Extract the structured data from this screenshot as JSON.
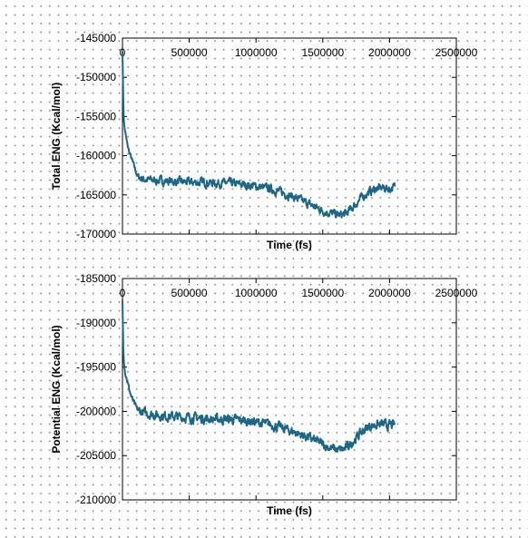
{
  "chart_data": [
    {
      "type": "line",
      "xlabel": "Time (fs)",
      "ylabel": "Total ENG (Kcal/mol)",
      "xlim": [
        0,
        2500000
      ],
      "ylim": [
        -170000,
        -145000
      ],
      "x_ticks": [
        "0",
        "500000",
        "1000000",
        "1500000",
        "2000000",
        "2500000"
      ],
      "y_ticks": [
        "-145000",
        "-150000",
        "-155000",
        "-160000",
        "-165000",
        "-170000"
      ],
      "x_axis_position": "top",
      "grid": false,
      "line_color": "#1b6787",
      "series": [
        {
          "x": [
            0,
            5000,
            10000,
            20000,
            35000,
            50000,
            70000,
            90000,
            110000,
            150000,
            200000,
            300000,
            400000,
            500000,
            600000,
            700000,
            800000,
            900000,
            1000000,
            1100000,
            1200000,
            1300000,
            1400000,
            1500000,
            1550000,
            1600000,
            1630000,
            1670000,
            1700000,
            1750000,
            1800000,
            1850000,
            1900000,
            1950000,
            2000000,
            2040000
          ],
          "y": [
            -146500,
            -152000,
            -155500,
            -157000,
            -158500,
            -159500,
            -160500,
            -161500,
            -162500,
            -163000,
            -163100,
            -163200,
            -163300,
            -163400,
            -163400,
            -163500,
            -163500,
            -163700,
            -163900,
            -164200,
            -164700,
            -165400,
            -166200,
            -167000,
            -167300,
            -167500,
            -167600,
            -167400,
            -167000,
            -166100,
            -165200,
            -164600,
            -164200,
            -164100,
            -164200,
            -164000
          ]
        }
      ]
    },
    {
      "type": "line",
      "xlabel": "Time (fs)",
      "ylabel": "Potential ENG (Kcal/mol)",
      "xlim": [
        0,
        2500000
      ],
      "ylim": [
        -210000,
        -185000
      ],
      "x_ticks": [
        "0",
        "500000",
        "1000000",
        "1500000",
        "2000000",
        "2500000"
      ],
      "y_ticks": [
        "-185000",
        "-190000",
        "-195000",
        "-200000",
        "-205000",
        "-210000"
      ],
      "x_axis_position": "top",
      "grid": false,
      "line_color": "#1b6787",
      "series": [
        {
          "x": [
            0,
            5000,
            10000,
            20000,
            35000,
            50000,
            70000,
            90000,
            110000,
            150000,
            200000,
            300000,
            400000,
            500000,
            600000,
            700000,
            800000,
            900000,
            1000000,
            1100000,
            1200000,
            1300000,
            1400000,
            1500000,
            1550000,
            1600000,
            1630000,
            1670000,
            1700000,
            1750000,
            1800000,
            1850000,
            1900000,
            1950000,
            2000000,
            2040000
          ],
          "y": [
            -187500,
            -192000,
            -194000,
            -195500,
            -196500,
            -197500,
            -198500,
            -199200,
            -199800,
            -200100,
            -200300,
            -200500,
            -200600,
            -200700,
            -200800,
            -200900,
            -200900,
            -201000,
            -201200,
            -201500,
            -201900,
            -202400,
            -203000,
            -203700,
            -204100,
            -204300,
            -204400,
            -204200,
            -203800,
            -203000,
            -202200,
            -201700,
            -201500,
            -201500,
            -201600,
            -201500
          ]
        }
      ]
    }
  ]
}
